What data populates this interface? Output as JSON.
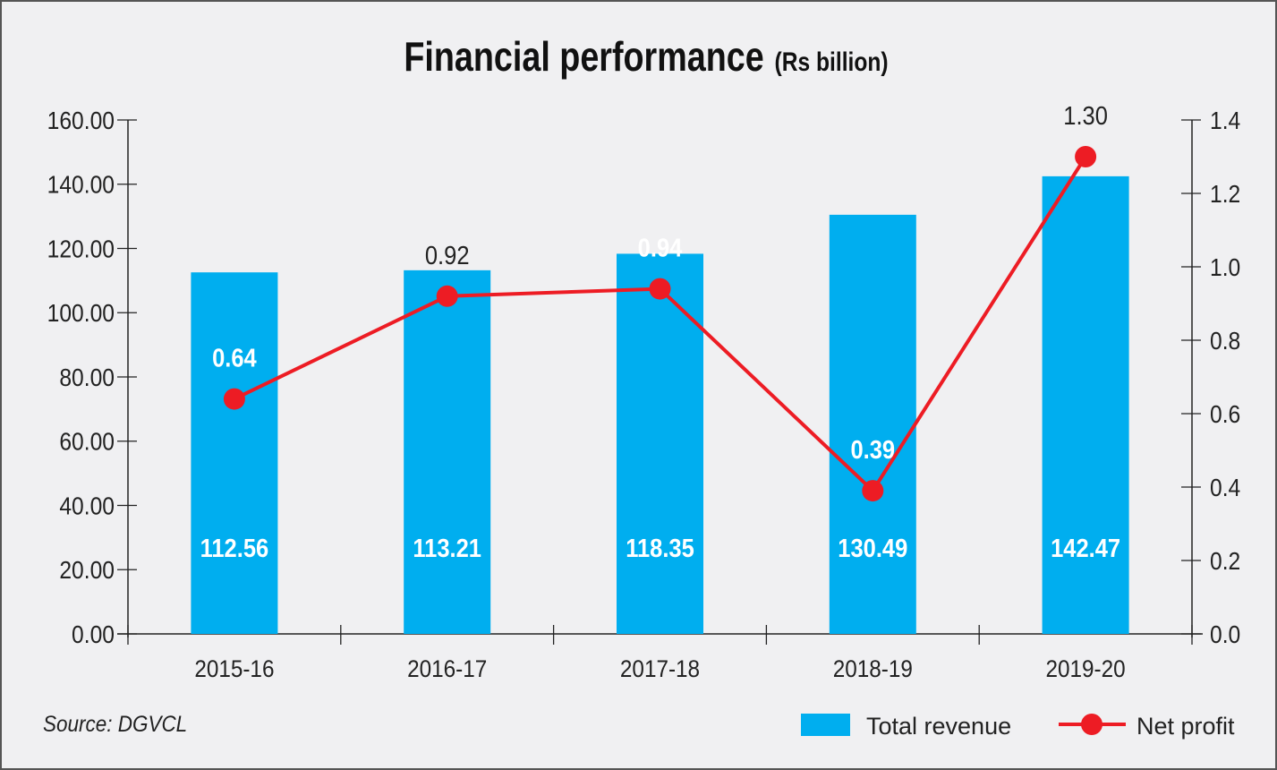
{
  "chart_data": {
    "type": "bar+line",
    "title": "Financial performance",
    "subtitle": "(Rs billion)",
    "categories": [
      "2015-16",
      "2016-17",
      "2017-18",
      "2018-19",
      "2019-20"
    ],
    "series": [
      {
        "name": "Total revenue",
        "type": "bar",
        "axis": "left",
        "color": "#00aeef",
        "values": [
          112.56,
          113.21,
          118.35,
          130.49,
          142.47
        ],
        "labels": [
          "112.56",
          "113.21",
          "118.35",
          "130.49",
          "142.47"
        ]
      },
      {
        "name": "Net profit",
        "type": "line",
        "axis": "right",
        "color": "#ed1c24",
        "values": [
          0.64,
          0.92,
          0.94,
          0.39,
          1.3
        ],
        "labels": [
          "0.64",
          "0.92",
          "0.94",
          "0.39",
          "1.30"
        ]
      }
    ],
    "left_axis": {
      "ylim": [
        0,
        160
      ],
      "ticks": [
        "0.00",
        "20.00",
        "40.00",
        "60.00",
        "80.00",
        "100.00",
        "120.00",
        "140.00",
        "160.00"
      ]
    },
    "right_axis": {
      "ylim": [
        0,
        1.4
      ],
      "ticks": [
        "0.0",
        "0.2",
        "0.4",
        "0.6",
        "0.8",
        "1.0",
        "1.2",
        "1.4"
      ]
    },
    "legend_position": "bottom-right",
    "grid": false,
    "source": "Source: DGVCL"
  }
}
